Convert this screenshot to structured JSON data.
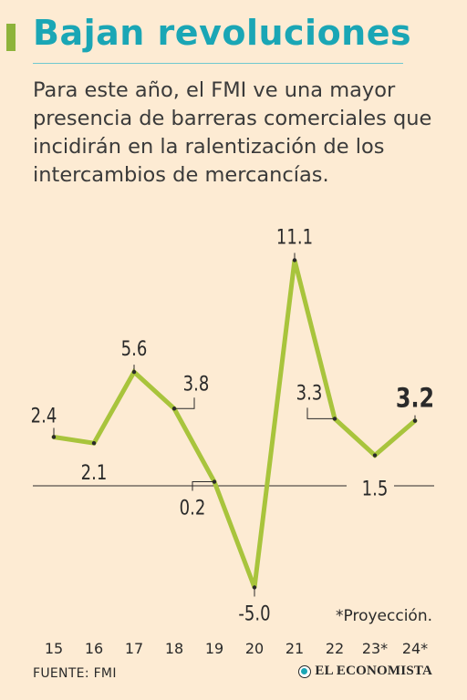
{
  "header": {
    "title": "Bajan revoluciones",
    "subtitle": "Para este año, el FMI ve una mayor presencia de barreras comerciales que incidirán en la ralentización de los intercambios de mercancías."
  },
  "chart_data": {
    "type": "line",
    "categories": [
      "15",
      "16",
      "17",
      "18",
      "19",
      "20",
      "21",
      "22",
      "23*",
      "24*"
    ],
    "series": [
      {
        "values": [
          2.4,
          2.1,
          5.6,
          3.8,
          0.2,
          -5.0,
          11.1,
          3.3,
          1.5,
          3.2
        ]
      }
    ],
    "data_labels": [
      "2.4",
      "2.1",
      "5.6",
      "3.8",
      "0.2",
      "-5.0",
      "11.1",
      "3.3",
      "1.5",
      "3.2"
    ],
    "highlighted_index": 9,
    "ylim": [
      -5.0,
      11.1
    ],
    "baseline": 0,
    "grid": false,
    "line_color": "#a8c43c"
  },
  "footer": {
    "note": "*Proyección.",
    "source": "FUENTE: FMI",
    "brand": "EL ECONOMISTA"
  },
  "colors": {
    "background": "#fdebd3",
    "title": "#1aa6b5",
    "accent": "#8db33a"
  }
}
